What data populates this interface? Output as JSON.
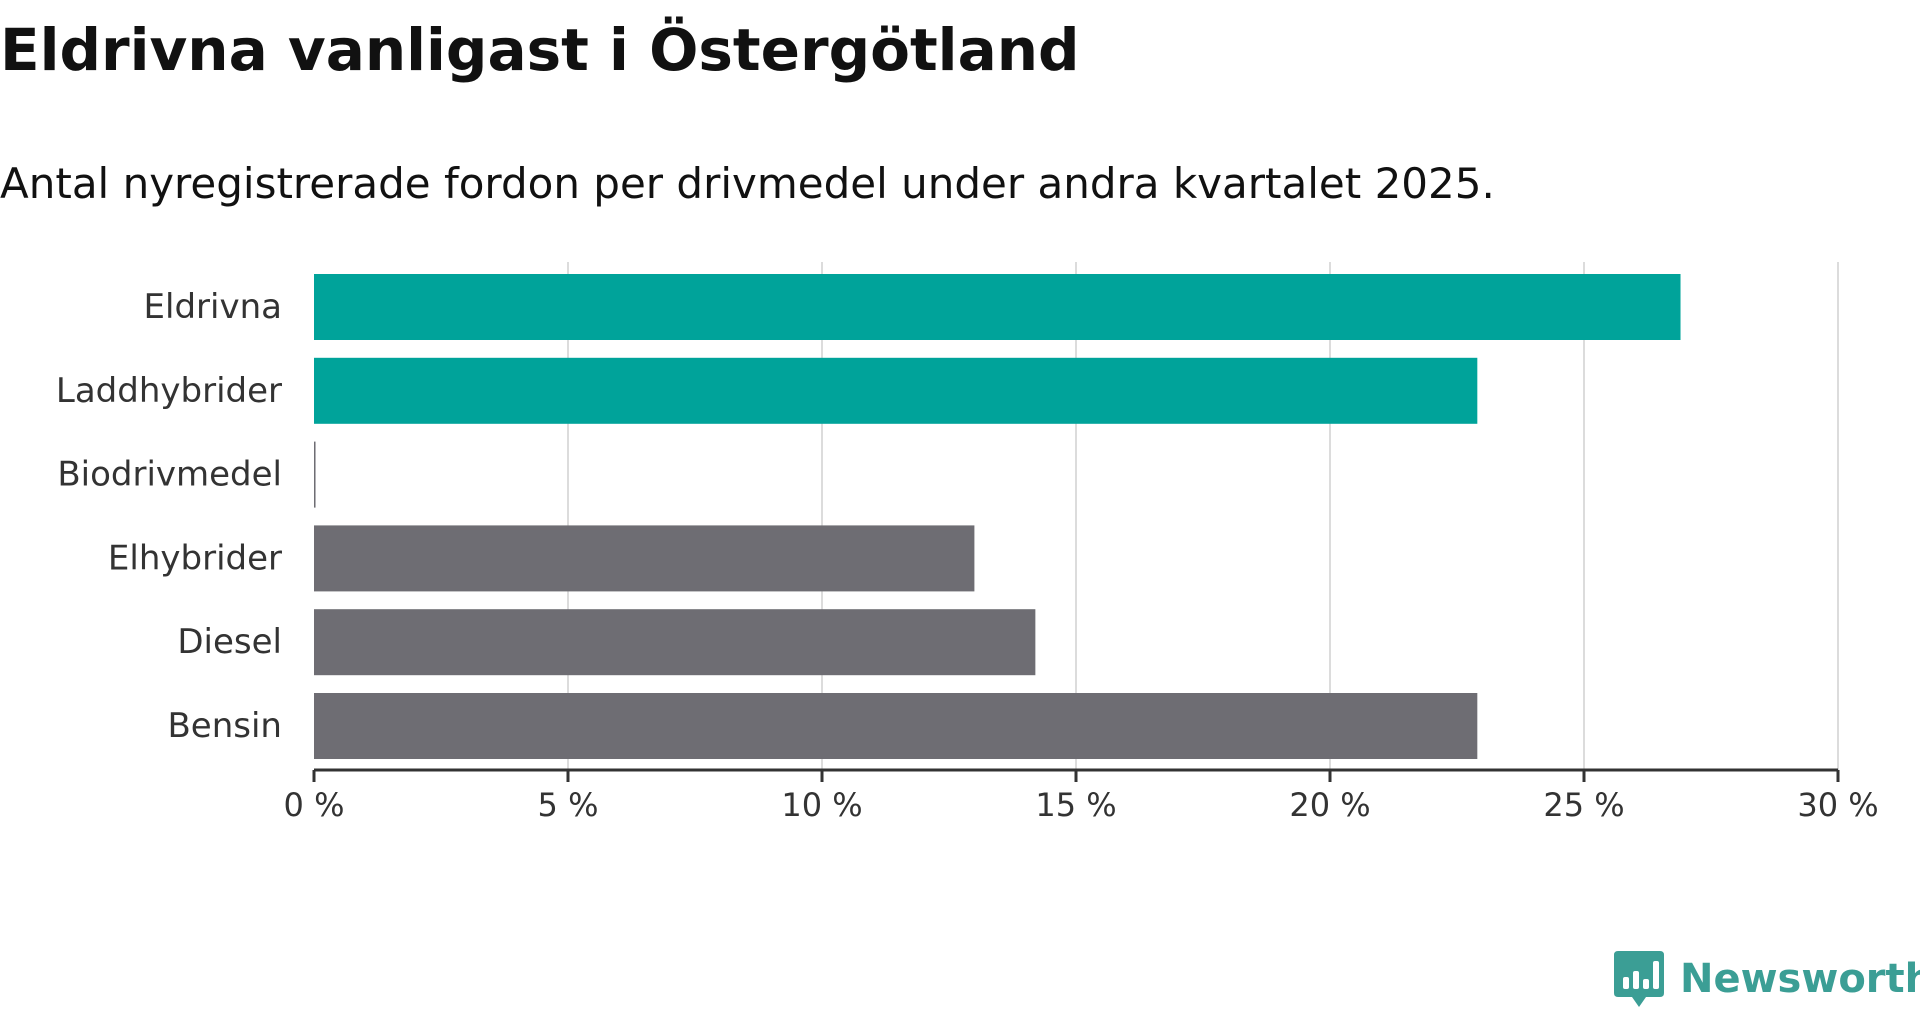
{
  "title": "Eldrivna vanligast i Östergötland",
  "subtitle": "Antal nyregistrerade fordon per drivmedel under andra kvartalet 2025.",
  "brand": {
    "name": "Newsworthy",
    "icon": "newsworthy-logo-icon",
    "color": "#3b9e95"
  },
  "chart_data": {
    "type": "bar",
    "orientation": "horizontal",
    "categories": [
      "Eldrivna",
      "Laddhybrider",
      "Biodrivmedel",
      "Elhybrider",
      "Diesel",
      "Bensin"
    ],
    "values": [
      26.9,
      22.9,
      0.03,
      13.0,
      14.2,
      22.9
    ],
    "colors": [
      "#00a39a",
      "#00a39a",
      "#6e6d73",
      "#6e6d73",
      "#6e6d73",
      "#6e6d73"
    ],
    "xlim": [
      0,
      30
    ],
    "xticks": [
      0,
      5,
      10,
      15,
      20,
      25,
      30
    ],
    "tick_labels": [
      "0 %",
      "5 %",
      "10 %",
      "15 %",
      "20 %",
      "25 %",
      "30 %"
    ],
    "grid": "vertical"
  }
}
